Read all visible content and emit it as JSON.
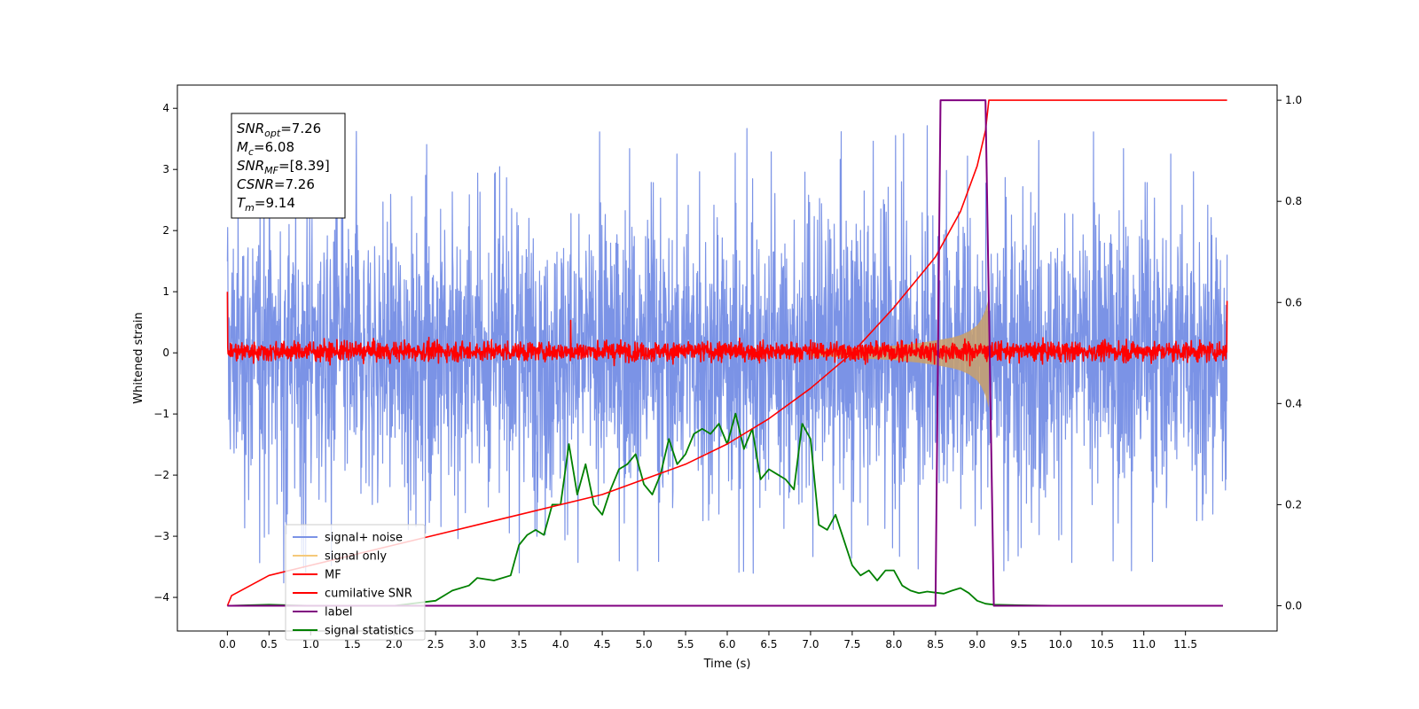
{
  "chart_data": {
    "type": "line",
    "xlabel": "Time (s)",
    "ylabel": "Whitened strain",
    "xlim": [
      -0.6,
      12.6
    ],
    "ylim": [
      -4.55,
      4.38
    ],
    "y2lim": [
      -0.05,
      1.03
    ],
    "x_ticks": [
      "0.0",
      "0.5",
      "1.0",
      "1.5",
      "2.0",
      "2.5",
      "3.0",
      "3.5",
      "4.0",
      "4.5",
      "5.0",
      "5.5",
      "6.0",
      "6.5",
      "7.0",
      "7.5",
      "8.0",
      "8.5",
      "9.0",
      "9.5",
      "10.0",
      "10.5",
      "11.0",
      "11.5"
    ],
    "y_ticks": [
      "4",
      "3",
      "2",
      "1",
      "0",
      "−1",
      "−2",
      "−3",
      "−4"
    ],
    "y2_ticks": [
      "1.0",
      "0.8",
      "0.6",
      "0.4",
      "0.2",
      "0.0"
    ],
    "textbox": [
      {
        "base": "SNR",
        "sub": "opt",
        "value": "=7.26"
      },
      {
        "base": "M",
        "sub": "c",
        "value": "=6.08"
      },
      {
        "base": "SNR",
        "sub": "MF",
        "value": "=[8.39]"
      },
      {
        "base": "CSNR",
        "sub": "",
        "value": "=7.26"
      },
      {
        "base": "T",
        "sub": "m",
        "value": "=9.14"
      }
    ],
    "legend": {
      "placement": "lower-left",
      "entries": [
        {
          "label": "signal+ noise",
          "color": "#7b93e6"
        },
        {
          "label": "signal only",
          "color": "#f5c97a"
        },
        {
          "label": "MF",
          "color": "#ff0000"
        },
        {
          "label": "cumilative SNR",
          "color": "#ff0000"
        },
        {
          "label": "label",
          "color": "#800080"
        },
        {
          "label": "signal statistics",
          "color": "#008000"
        }
      ]
    },
    "series": [
      {
        "name": "signal+ noise",
        "axis": "left",
        "style": "noise band",
        "x_range": [
          0.0,
          12.0
        ],
        "typical_range": [
          -2.5,
          2.5
        ],
        "peaks_max": 4.0,
        "peaks_min": -4.15,
        "color": "#7b93e6"
      },
      {
        "name": "signal only",
        "axis": "left",
        "style": "chirp envelope",
        "x": [
          7.0,
          7.5,
          8.0,
          8.3,
          8.5,
          8.7,
          8.8,
          8.9,
          9.0,
          9.05,
          9.1,
          9.14
        ],
        "amplitude": [
          0.05,
          0.08,
          0.12,
          0.16,
          0.2,
          0.25,
          0.29,
          0.35,
          0.45,
          0.55,
          0.7,
          0.9
        ],
        "color": "#c9a06a"
      },
      {
        "name": "MF",
        "axis": "left",
        "style": "noise band",
        "x_range": [
          0.0,
          12.0
        ],
        "typical_range": [
          -0.15,
          0.2
        ],
        "spikes": [
          {
            "x": 0.0,
            "y": 1.0
          },
          {
            "x": 4.12,
            "y": 0.53
          },
          {
            "x": 12.0,
            "y": 0.85
          }
        ],
        "color": "#ff0000"
      },
      {
        "name": "cumilative SNR",
        "axis": "right",
        "x": [
          0.0,
          0.05,
          0.5,
          1.0,
          1.5,
          2.0,
          2.5,
          3.0,
          3.5,
          4.0,
          4.5,
          5.0,
          5.5,
          6.0,
          6.5,
          7.0,
          7.5,
          8.0,
          8.5,
          8.8,
          9.0,
          9.1,
          9.14,
          10.0,
          11.0,
          12.0
        ],
        "values": [
          0.0,
          0.02,
          0.06,
          0.08,
          0.1,
          0.12,
          0.14,
          0.16,
          0.18,
          0.2,
          0.22,
          0.25,
          0.28,
          0.32,
          0.37,
          0.43,
          0.5,
          0.59,
          0.69,
          0.78,
          0.87,
          0.94,
          1.0,
          1.0,
          1.0,
          1.0
        ],
        "color": "#ff0000"
      },
      {
        "name": "label",
        "axis": "right",
        "x": [
          0.0,
          8.5,
          8.56,
          9.1,
          9.2,
          11.95
        ],
        "values": [
          0.0,
          0.0,
          1.0,
          1.0,
          0.0,
          0.0
        ],
        "color": "#800080"
      },
      {
        "name": "signal statistics",
        "axis": "right",
        "x": [
          0.0,
          0.5,
          1.0,
          1.5,
          2.0,
          2.5,
          2.7,
          2.9,
          3.0,
          3.2,
          3.4,
          3.5,
          3.6,
          3.7,
          3.8,
          3.9,
          4.0,
          4.1,
          4.2,
          4.3,
          4.4,
          4.5,
          4.6,
          4.7,
          4.8,
          4.9,
          5.0,
          5.1,
          5.2,
          5.3,
          5.4,
          5.5,
          5.6,
          5.7,
          5.8,
          5.9,
          6.0,
          6.1,
          6.2,
          6.3,
          6.4,
          6.5,
          6.6,
          6.7,
          6.8,
          6.9,
          7.0,
          7.1,
          7.2,
          7.3,
          7.4,
          7.5,
          7.6,
          7.7,
          7.8,
          7.9,
          8.0,
          8.1,
          8.2,
          8.3,
          8.4,
          8.5,
          8.6,
          8.7,
          8.8,
          8.9,
          9.0,
          9.1,
          9.2,
          9.5,
          10.0,
          10.5,
          11.0,
          11.5,
          11.95
        ],
        "values": [
          0.0,
          0.002,
          0.0,
          0.0,
          0.0,
          0.01,
          0.03,
          0.04,
          0.055,
          0.05,
          0.06,
          0.12,
          0.14,
          0.15,
          0.14,
          0.2,
          0.2,
          0.32,
          0.22,
          0.28,
          0.2,
          0.18,
          0.23,
          0.27,
          0.28,
          0.3,
          0.24,
          0.22,
          0.26,
          0.33,
          0.28,
          0.3,
          0.34,
          0.35,
          0.34,
          0.36,
          0.32,
          0.38,
          0.31,
          0.35,
          0.25,
          0.27,
          0.26,
          0.25,
          0.23,
          0.36,
          0.33,
          0.16,
          0.15,
          0.18,
          0.13,
          0.08,
          0.06,
          0.07,
          0.05,
          0.07,
          0.07,
          0.04,
          0.03,
          0.025,
          0.028,
          0.026,
          0.024,
          0.03,
          0.035,
          0.025,
          0.01,
          0.004,
          0.002,
          0.001,
          0.0,
          0.0,
          0.0,
          0.0,
          0.0
        ],
        "color": "#008000"
      }
    ]
  }
}
